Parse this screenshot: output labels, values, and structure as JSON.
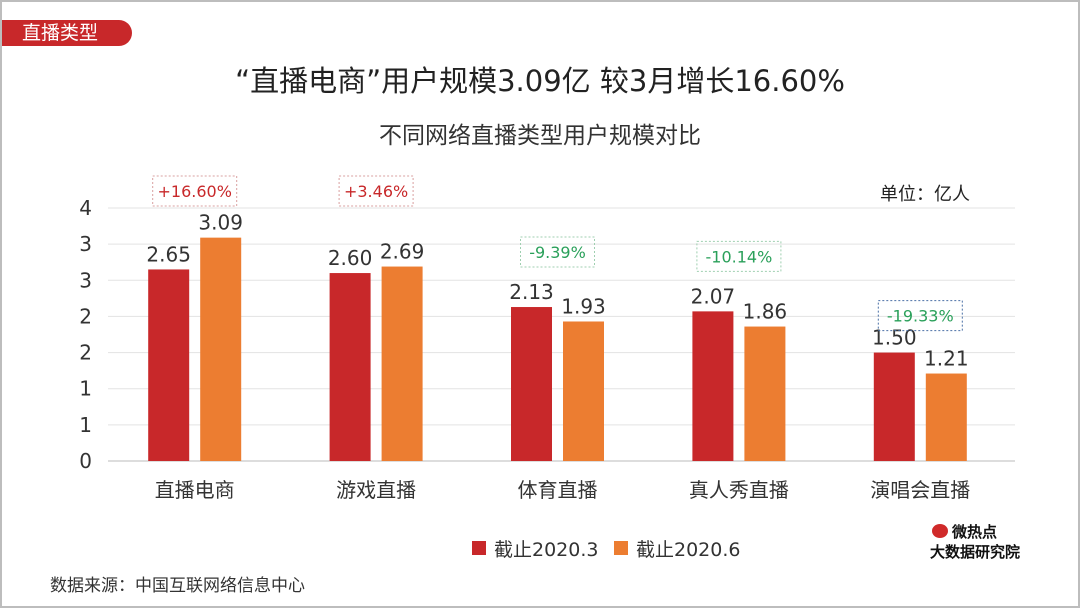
{
  "section_tag": "直播类型",
  "title": "“直播电商”用户规模3.09亿 较3月增长16.60%",
  "subtitle": "不同网络直播类型用户规模对比",
  "unit": "单位：亿人",
  "source": "数据来源：中国互联网络信息中心",
  "logo": {
    "line1": "微热点",
    "line2": "大数据研究院"
  },
  "chart_data": {
    "type": "bar",
    "categories": [
      "直播电商",
      "游戏直播",
      "体育直播",
      "真人秀直播",
      "演唱会直播"
    ],
    "series": [
      {
        "name": "截止2020.3",
        "values": [
          2.65,
          2.6,
          2.13,
          2.07,
          1.5
        ],
        "labels": [
          "2.65",
          "2.60",
          "2.13",
          "2.07",
          "1.50"
        ],
        "color": "#c8282a"
      },
      {
        "name": "截止2020.6",
        "values": [
          3.09,
          2.69,
          1.93,
          1.86,
          1.21
        ],
        "labels": [
          "3.09",
          "2.69",
          "1.93",
          "1.86",
          "1.21"
        ],
        "color": "#ec7d31"
      }
    ],
    "changes": [
      "+16.60%",
      "+3.46%",
      "-9.39%",
      "-10.14%",
      "-19.33%"
    ],
    "change_colors": {
      "positive": "#c8282a",
      "negative": "#2aa05a"
    },
    "ylim": [
      0,
      3.5
    ],
    "yticks": [
      0,
      0.5,
      1,
      1.5,
      2,
      2.5,
      3,
      3.5
    ],
    "ytick_labels": [
      "0",
      "1",
      "1",
      "2",
      "2",
      "3",
      "3",
      "4"
    ],
    "grid": true,
    "legend": "bottom"
  }
}
